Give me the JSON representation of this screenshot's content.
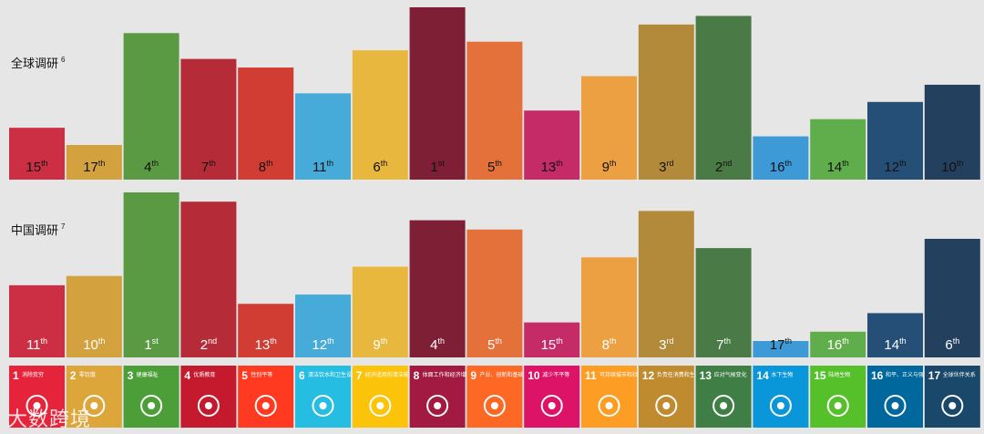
{
  "chart_data": [
    {
      "type": "bar",
      "label": "全球调研",
      "label_sup": "6",
      "categories": [
        "1",
        "2",
        "3",
        "4",
        "5",
        "6",
        "7",
        "8",
        "9",
        "10",
        "11",
        "12",
        "13",
        "14",
        "15",
        "16",
        "17"
      ],
      "values": [
        15,
        17,
        4,
        7,
        8,
        11,
        6,
        1,
        5,
        13,
        9,
        3,
        2,
        16,
        14,
        12,
        10
      ],
      "rank_labels": [
        "15th",
        "17th",
        "4th",
        "7th",
        "8th",
        "11th",
        "6th",
        "1st",
        "5th",
        "13th",
        "9th",
        "3rd",
        "2nd",
        "16th",
        "14th",
        "12th",
        "10th"
      ]
    },
    {
      "type": "bar",
      "label": "中国调研",
      "label_sup": "7",
      "categories": [
        "1",
        "2",
        "3",
        "4",
        "5",
        "6",
        "7",
        "8",
        "9",
        "10",
        "11",
        "12",
        "13",
        "14",
        "15",
        "16",
        "17"
      ],
      "values": [
        11,
        10,
        1,
        2,
        13,
        12,
        9,
        4,
        5,
        15,
        8,
        3,
        7,
        17,
        16,
        14,
        6
      ],
      "rank_labels": [
        "11th",
        "10th",
        "1st",
        "2nd",
        "13th",
        "12th",
        "9th",
        "4th",
        "5th",
        "15th",
        "8th",
        "3rd",
        "7th",
        "17th",
        "16th",
        "14th",
        "6th"
      ]
    }
  ],
  "goals": [
    {
      "num": "1",
      "name": "消除贫穷",
      "color": "#e5243b"
    },
    {
      "num": "2",
      "name": "零饥饿",
      "color": "#dda63a"
    },
    {
      "num": "3",
      "name": "健康福祉",
      "color": "#4c9f38"
    },
    {
      "num": "4",
      "name": "优质教育",
      "color": "#c5192d"
    },
    {
      "num": "5",
      "name": "性别平等",
      "color": "#ff3a21"
    },
    {
      "num": "6",
      "name": "清洁饮水和卫生设施",
      "color": "#26bde2"
    },
    {
      "num": "7",
      "name": "经济适用的清洁能源",
      "color": "#fcc30b"
    },
    {
      "num": "8",
      "name": "体面工作和经济增长",
      "color": "#a21942"
    },
    {
      "num": "9",
      "name": "产业、创新和基础设施",
      "color": "#fd6925"
    },
    {
      "num": "10",
      "name": "减少不平等",
      "color": "#dd1367"
    },
    {
      "num": "11",
      "name": "可持续城市和社区",
      "color": "#fd9d24"
    },
    {
      "num": "12",
      "name": "负责任消费和生产",
      "color": "#bf8b2e"
    },
    {
      "num": "13",
      "name": "应对气候变化",
      "color": "#3f7e44"
    },
    {
      "num": "14",
      "name": "水下生物",
      "color": "#0a97d9"
    },
    {
      "num": "15",
      "name": "陆地生物",
      "color": "#56c02b"
    },
    {
      "num": "16",
      "name": "和平、正义与强大机构",
      "color": "#00689d"
    },
    {
      "num": "17",
      "name": "全球伙伴关系",
      "color": "#19486a"
    }
  ],
  "bar_colors": [
    "#cc2f44",
    "#d3a23f",
    "#5a9a42",
    "#b52b37",
    "#d23d33",
    "#46abd8",
    "#e8b83e",
    "#7e1f35",
    "#e5713a",
    "#c52b66",
    "#eda041",
    "#b38a3a",
    "#4a7a45",
    "#3e9ad7",
    "#60ad4b",
    "#254f76",
    "#23405f"
  ],
  "rank_text_colors": {
    "dark": "#111111",
    "light": "#ffffff"
  },
  "watermark": "大数跨境"
}
